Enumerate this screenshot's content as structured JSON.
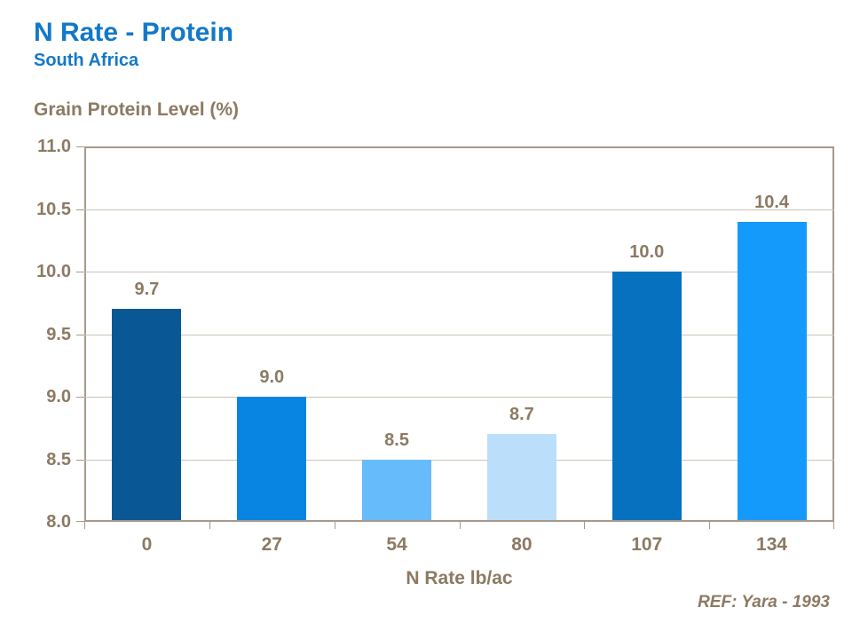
{
  "header": {
    "title": "N Rate - Protein",
    "subtitle": "South Africa"
  },
  "chart_data": {
    "type": "bar",
    "categories": [
      "0",
      "27",
      "54",
      "80",
      "107",
      "134"
    ],
    "values": [
      9.7,
      9.0,
      8.5,
      8.7,
      10.0,
      10.4
    ],
    "value_labels": [
      "9.7",
      "9.0",
      "8.5",
      "8.7",
      "10.0",
      "10.4"
    ],
    "bar_colors": [
      "#0a5796",
      "#0884e2",
      "#66bbfb",
      "#bbdefb",
      "#0571bf",
      "#149afb"
    ],
    "title": "",
    "ylabel": "Grain Protein Level (%)",
    "xlabel": "N Rate lb/ac",
    "ylim": [
      8.0,
      11.0
    ],
    "ytick_step": 0.5,
    "ytick_labels": [
      "11.0",
      "10.5",
      "10.0",
      "9.5",
      "9.0",
      "8.5",
      "8.0"
    ],
    "grid": true,
    "legend": "none"
  },
  "footer": {
    "reference": "REF: Yara - 1993"
  },
  "colors": {
    "title_blue": "#1378c8",
    "text_brown": "#8c7a63",
    "axis_frame": "#a6998c",
    "gridline": "#ccc3b8",
    "background": "#ffffff"
  }
}
